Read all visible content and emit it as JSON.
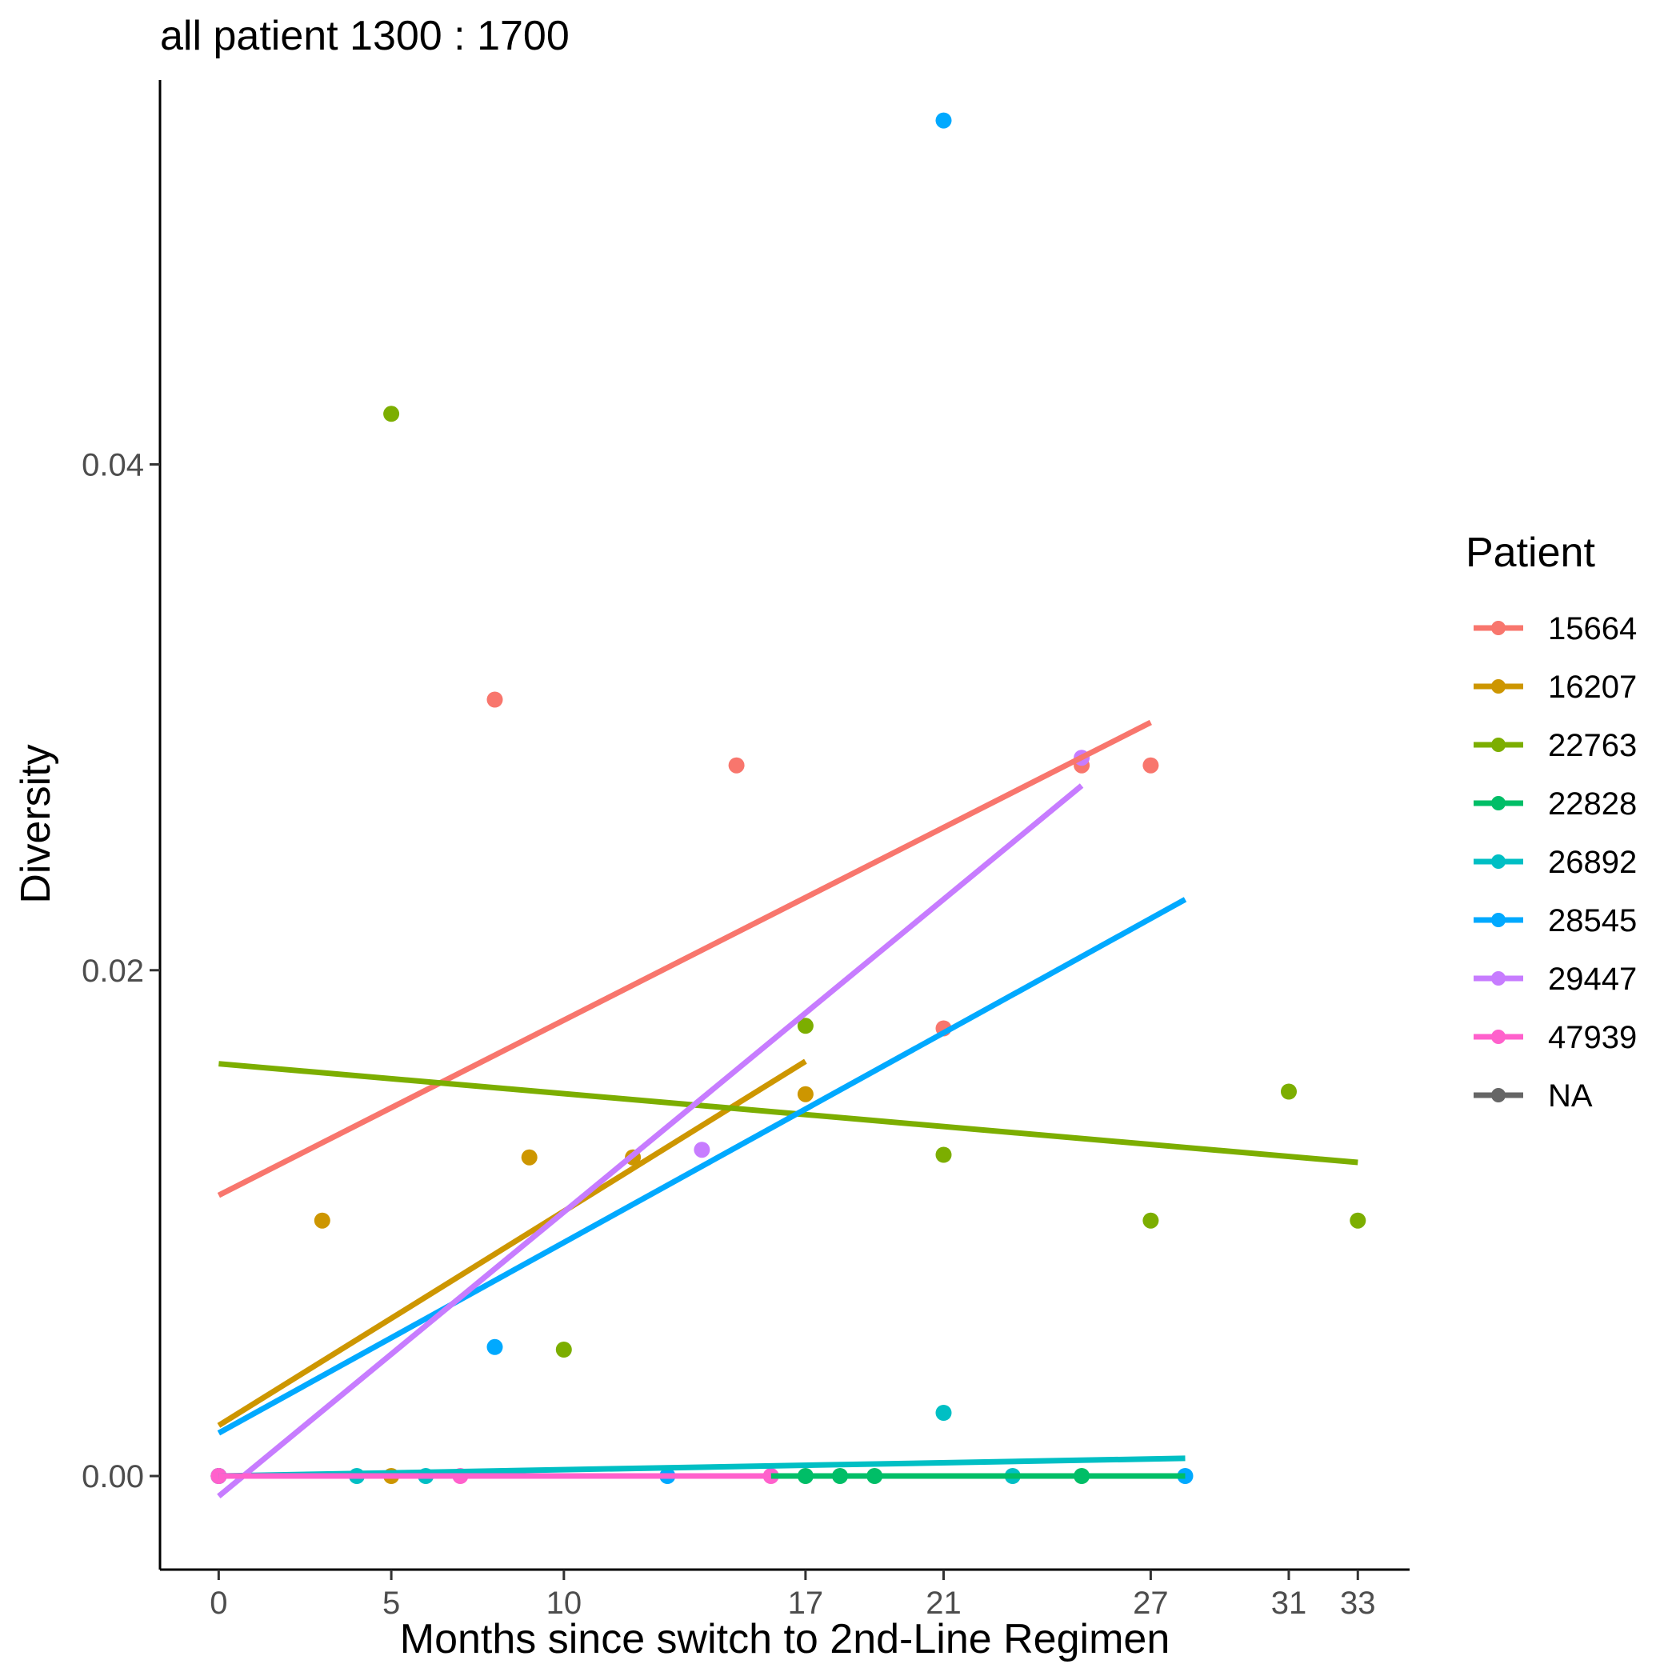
{
  "chart_data": {
    "type": "scatter",
    "title": "all patient 1300 : 1700",
    "xlabel": "Months since switch to 2nd-Line Regimen",
    "ylabel": "Diversity",
    "xlim": [
      -1.7,
      34.5
    ],
    "ylim": [
      -0.0037,
      0.0552
    ],
    "x_ticks": [
      0,
      5,
      10,
      17,
      21,
      27,
      31,
      33
    ],
    "x_tick_labels": [
      "0",
      "5",
      "10",
      "17",
      "21",
      "27",
      "31",
      "33"
    ],
    "y_ticks": [
      0.0,
      0.02,
      0.04
    ],
    "y_tick_labels": [
      "0.00",
      "0.02",
      "0.04"
    ],
    "grid": false,
    "legend": {
      "title": "Patient",
      "position": "right"
    },
    "series": [
      {
        "name": "15664",
        "color": "#F8766D",
        "points": [
          [
            0,
            0
          ],
          [
            8,
            0.0307
          ],
          [
            15,
            0.0281
          ],
          [
            21,
            0.0177
          ],
          [
            25,
            0.0281
          ],
          [
            27,
            0.0281
          ]
        ],
        "fit": [
          [
            0,
            0.0111
          ],
          [
            27,
            0.0298
          ]
        ]
      },
      {
        "name": "16207",
        "color": "#CD9600",
        "points": [
          [
            0,
            0
          ],
          [
            3,
            0.0101
          ],
          [
            5,
            0
          ],
          [
            9,
            0.0126
          ],
          [
            12,
            0.0126
          ],
          [
            17,
            0.0151
          ]
        ],
        "fit": [
          [
            0,
            0.002
          ],
          [
            17,
            0.0164
          ]
        ]
      },
      {
        "name": "22763",
        "color": "#7CAE00",
        "points": [
          [
            0,
            0
          ],
          [
            5,
            0.042
          ],
          [
            10,
            0.005
          ],
          [
            17,
            0.0178
          ],
          [
            21,
            0.0127
          ],
          [
            27,
            0.0101
          ],
          [
            31,
            0.0152
          ],
          [
            33,
            0.0101
          ]
        ],
        "fit": [
          [
            0,
            0.0163
          ],
          [
            33,
            0.0124
          ]
        ]
      },
      {
        "name": "22828",
        "color": "#00BE67",
        "points": [
          [
            0,
            0
          ],
          [
            17,
            0
          ],
          [
            18,
            0
          ],
          [
            19,
            0
          ],
          [
            25,
            0
          ]
        ],
        "fit": [
          [
            16,
            0
          ],
          [
            28,
            0
          ]
        ]
      },
      {
        "name": "26892",
        "color": "#00BFC4",
        "points": [
          [
            0,
            0
          ],
          [
            4,
            0
          ],
          [
            6,
            0
          ],
          [
            21,
            0.0025
          ],
          [
            23,
            0
          ]
        ],
        "fit": [
          [
            0,
            0
          ],
          [
            28,
            0.0007
          ]
        ]
      },
      {
        "name": "28545",
        "color": "#00A9FF",
        "points": [
          [
            0,
            0
          ],
          [
            8,
            0.0051
          ],
          [
            13,
            0
          ],
          [
            21,
            0.0536
          ],
          [
            28,
            0
          ]
        ],
        "fit": [
          [
            0,
            0.0017
          ],
          [
            28,
            0.0228
          ]
        ]
      },
      {
        "name": "29447",
        "color": "#C77CFF",
        "points": [
          [
            0,
            0
          ],
          [
            14,
            0.0129
          ],
          [
            25,
            0.0284
          ]
        ],
        "fit": [
          [
            0,
            -0.0008
          ],
          [
            25,
            0.0273
          ]
        ]
      },
      {
        "name": "47939",
        "color": "#FF61CC",
        "points": [
          [
            0,
            0
          ],
          [
            7,
            0
          ],
          [
            16,
            0
          ]
        ],
        "fit": [
          [
            0,
            0
          ],
          [
            16,
            0
          ]
        ]
      },
      {
        "name": "NA",
        "color": "#666666",
        "points": [],
        "fit": []
      }
    ]
  }
}
